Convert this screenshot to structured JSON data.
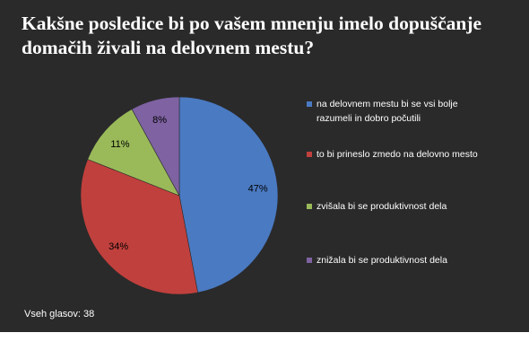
{
  "chart_data": {
    "type": "pie",
    "title": "Kakšne posledice bi po vašem mnenju imelo dopuščanje domačih živali na delovnem mestu?",
    "categories": [
      "na delovnem mestu bi se vsi bolje razumeli in dobro počutili",
      "to bi prineslo zmedo na delovno mesto",
      "zvišala bi se produktivnost dela",
      "znižala bi se produktivnost dela"
    ],
    "values": [
      47,
      34,
      11,
      8
    ],
    "value_labels": [
      "47%",
      "34%",
      "11%",
      "8%"
    ],
    "colors": [
      "#4a7ac2",
      "#c0403d",
      "#9aba5a",
      "#7e62a2"
    ],
    "legend_position": "right"
  },
  "footer": {
    "total_votes": "Vseh glasov: 38"
  }
}
